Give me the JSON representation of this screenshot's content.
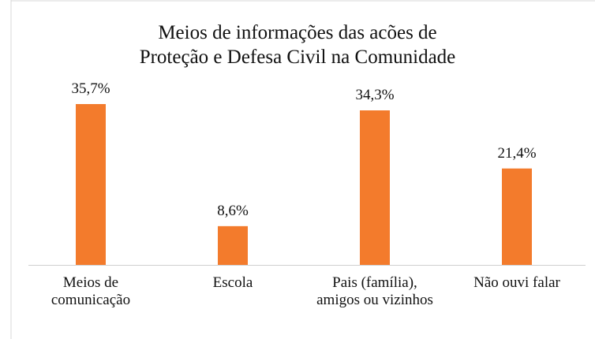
{
  "chart_data": {
    "type": "bar",
    "title": "Meios de informações das acões de\nProteção e Defesa Civil na Comunidade",
    "categories": [
      "Meios de\ncomunicação",
      "Escola",
      "Pais (família),\namigos ou vizinhos",
      "Não ouvi falar"
    ],
    "values": [
      35.7,
      8.6,
      34.3,
      21.4
    ],
    "value_labels": [
      "35,7%",
      "8,6%",
      "34,3%",
      "21,4%"
    ],
    "color": "#f37b2c"
  }
}
